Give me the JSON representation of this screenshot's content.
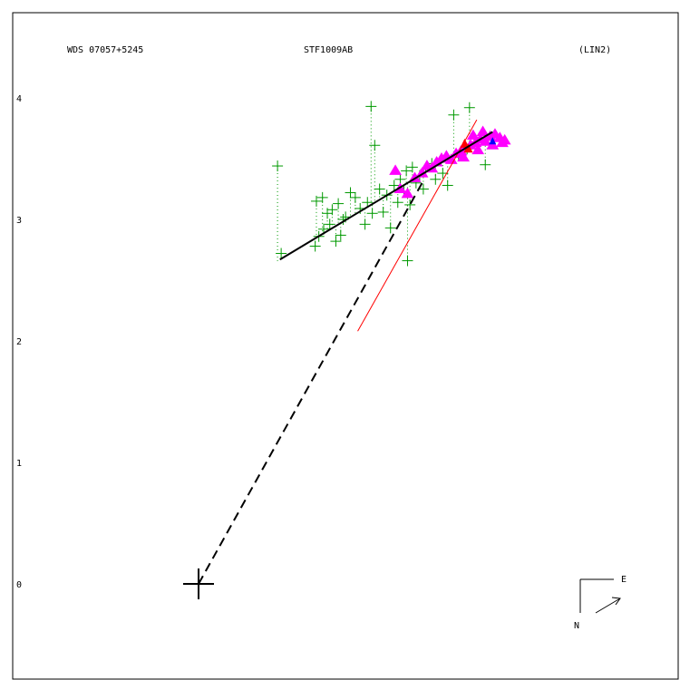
{
  "header": {
    "left": "WDS 07057+5245",
    "center": "STF1009AB",
    "right": "(LIN2)"
  },
  "compass": {
    "north": "N",
    "east": "E"
  },
  "colors": {
    "frame": "#000000",
    "micrometer": "#009900",
    "speckle": "#ff00ff",
    "recent": "#ff0000",
    "blue_point": "#0000ff",
    "fit_line": "#000000",
    "linear_motion": "#ff0000",
    "dashed": "#000000"
  },
  "chart_data": {
    "type": "scatter",
    "title": "",
    "xlabel": "",
    "ylabel": "",
    "yticks": [
      0,
      1,
      2,
      3,
      4
    ],
    "ylim": [
      -0.8,
      4.7
    ],
    "xlim": [
      -1.52,
      3.98
    ],
    "primary": {
      "x": 0,
      "y": 0
    },
    "fit_line": [
      [
        0.67,
        2.67
      ],
      [
        2.42,
        3.72
      ]
    ],
    "linear_motion": [
      [
        1.31,
        2.08
      ],
      [
        2.29,
        3.82
      ]
    ],
    "dashed_line": [
      [
        0,
        0
      ],
      [
        1.84,
        3.3
      ]
    ],
    "micrometer_points": [
      [
        0.65,
        3.44
      ],
      [
        0.68,
        2.72
      ],
      [
        1.42,
        3.93
      ],
      [
        1.45,
        3.61
      ],
      [
        0.97,
        3.15
      ],
      [
        1.02,
        3.18
      ],
      [
        1.06,
        3.05
      ],
      [
        1.1,
        3.08
      ],
      [
        1.15,
        3.13
      ],
      [
        1.19,
        3.0
      ],
      [
        1.25,
        3.22
      ],
      [
        1.29,
        3.18
      ],
      [
        1.33,
        3.09
      ],
      [
        1.39,
        3.14
      ],
      [
        1.43,
        3.05
      ],
      [
        1.49,
        3.25
      ],
      [
        1.55,
        3.2
      ],
      [
        1.61,
        3.28
      ],
      [
        1.66,
        3.33
      ],
      [
        1.71,
        3.4
      ],
      [
        1.76,
        3.43
      ],
      [
        1.82,
        3.36
      ],
      [
        1.87,
        3.41
      ],
      [
        1.92,
        3.46
      ],
      [
        0.96,
        2.78
      ],
      [
        0.99,
        2.86
      ],
      [
        1.03,
        2.92
      ],
      [
        1.08,
        2.96
      ],
      [
        1.13,
        2.82
      ],
      [
        1.17,
        2.87
      ],
      [
        1.21,
        3.02
      ],
      [
        1.37,
        2.96
      ],
      [
        1.52,
        3.06
      ],
      [
        1.58,
        2.93
      ],
      [
        1.64,
        3.14
      ],
      [
        1.69,
        3.23
      ],
      [
        1.74,
        3.12
      ],
      [
        1.79,
        3.3
      ],
      [
        1.85,
        3.25
      ],
      [
        1.95,
        3.33
      ],
      [
        2.01,
        3.38
      ],
      [
        2.05,
        3.28
      ],
      [
        2.1,
        3.86
      ],
      [
        2.23,
        3.92
      ],
      [
        2.36,
        3.45
      ],
      [
        1.72,
        2.66
      ],
      [
        2.14,
        3.53
      ],
      [
        2.21,
        3.58
      ]
    ],
    "speckle_points": [
      [
        1.62,
        3.4
      ],
      [
        1.66,
        3.25
      ],
      [
        1.72,
        3.21
      ],
      [
        1.78,
        3.34
      ],
      [
        1.84,
        3.38
      ],
      [
        1.88,
        3.44
      ],
      [
        1.92,
        3.42
      ],
      [
        1.96,
        3.47
      ],
      [
        2.0,
        3.5
      ],
      [
        2.04,
        3.52
      ],
      [
        2.08,
        3.49
      ],
      [
        2.12,
        3.54
      ],
      [
        2.16,
        3.56
      ],
      [
        2.2,
        3.59
      ],
      [
        2.24,
        3.61
      ],
      [
        2.28,
        3.63
      ],
      [
        2.32,
        3.66
      ],
      [
        2.36,
        3.64
      ],
      [
        2.4,
        3.68
      ],
      [
        2.44,
        3.7
      ],
      [
        2.48,
        3.67
      ],
      [
        2.52,
        3.65
      ],
      [
        2.26,
        3.69
      ],
      [
        2.34,
        3.72
      ],
      [
        2.42,
        3.61
      ],
      [
        2.5,
        3.63
      ],
      [
        2.3,
        3.57
      ],
      [
        2.18,
        3.51
      ]
    ],
    "recent_points": [
      [
        2.19,
        3.62
      ],
      [
        2.22,
        3.58
      ]
    ],
    "blue_points": [
      [
        2.42,
        3.64
      ]
    ]
  }
}
